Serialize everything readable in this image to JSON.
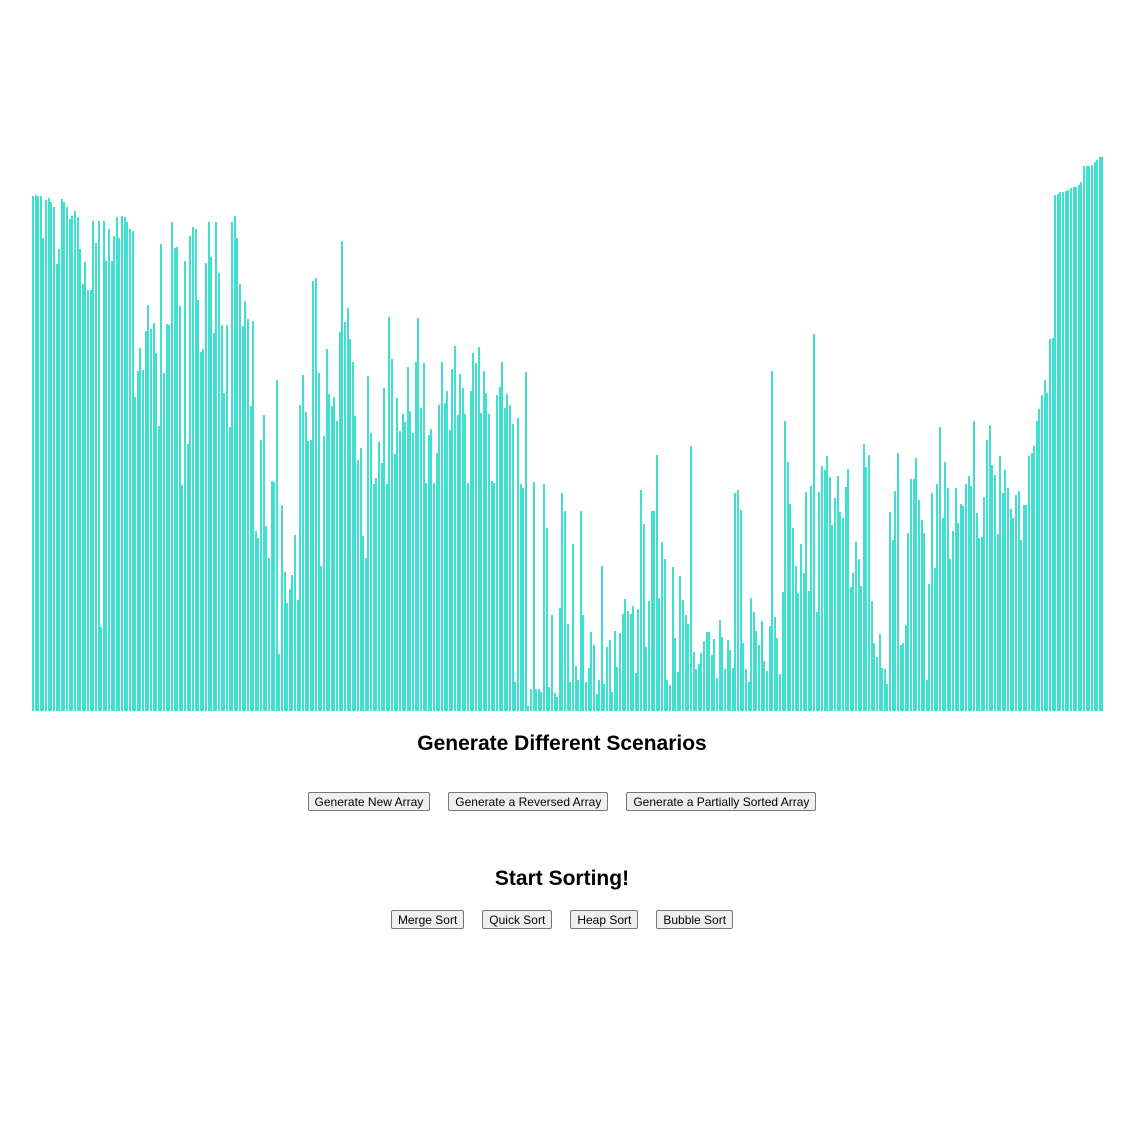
{
  "chart_data": {
    "type": "bar",
    "bar_color": "#40e0d0",
    "ylim": [
      0,
      700
    ],
    "values": [
      584,
      585,
      584,
      584,
      536,
      580,
      582,
      577,
      572,
      506,
      524,
      581,
      578,
      572,
      558,
      561,
      567,
      560,
      524,
      484,
      509,
      477,
      477,
      556,
      530,
      556,
      90,
      556,
      510,
      547,
      510,
      539,
      560,
      536,
      561,
      560,
      554,
      546,
      544,
      354,
      384,
      410,
      385,
      430,
      459,
      432,
      439,
      404,
      321,
      529,
      381,
      438,
      437,
      554,
      525,
      526,
      458,
      253,
      510,
      300,
      538,
      549,
      546,
      465,
      406,
      409,
      508,
      554,
      514,
      427,
      554,
      496,
      436,
      359,
      436,
      320,
      554,
      561,
      536,
      484,
      435,
      464,
      444,
      344,
      441,
      200,
      192,
      305,
      334,
      206,
      170,
      258,
      257,
      373,
      60,
      230,
      154,
      118,
      134,
      150,
      196,
      122,
      345,
      379,
      337,
      304,
      305,
      487,
      490,
      381,
      161,
      309,
      409,
      358,
      344,
      354,
      327,
      428,
      533,
      440,
      456,
      421,
      394,
      332,
      282,
      296,
      195,
      170,
      378,
      313,
      254,
      261,
      302,
      279,
      364,
      254,
      446,
      398,
      289,
      353,
      315,
      335,
      325,
      388,
      338,
      313,
      394,
      445,
      342,
      393,
      255,
      311,
      317,
      256,
      290,
      345,
      394,
      347,
      361,
      316,
      386,
      412,
      333,
      380,
      364,
      335,
      255,
      361,
      404,
      393,
      411,
      336,
      384,
      359,
      335,
      258,
      255,
      356,
      365,
      394,
      342,
      357,
      345,
      323,
      28,
      330,
      254,
      250,
      383,
      0,
      20,
      257,
      20,
      20,
      16,
      254,
      204,
      22,
      104,
      15,
      10,
      112,
      244,
      224,
      94,
      27,
      186,
      46,
      30,
      224,
      104,
      28,
      44,
      85,
      70,
      14,
      30,
      160,
      25,
      68,
      76,
      16,
      86,
      45,
      84,
      105,
      123,
      109,
      106,
      115,
      38,
      111,
      248,
      209,
      68,
      120,
      224,
      224,
      288,
      124,
      188,
      169,
      30,
      24,
      159,
      78,
      39,
      149,
      122,
      104,
      94,
      298,
      62,
      43,
      48,
      61,
      75,
      85,
      85,
      58,
      77,
      32,
      99,
      79,
      43,
      76,
      64,
      44,
      244,
      248,
      225,
      72,
      42,
      28,
      124,
      108,
      86,
      70,
      98,
      52,
      40,
      92,
      384,
      102,
      78,
      37,
      131,
      326,
      280,
      232,
      204,
      160,
      130,
      186,
      152,
      245,
      132,
      252,
      426,
      108,
      245,
      275,
      270,
      286,
      262,
      207,
      238,
      264,
      222,
      216,
      251,
      272,
      136,
      152,
      188,
      168,
      137,
      300,
      274,
      288,
      120,
      72,
      56,
      82,
      44,
      42,
      25,
      222,
      190,
      246,
      290,
      70,
      72,
      93,
      198,
      260,
      260,
      284,
      236,
      213,
      198,
      30,
      140,
      244,
      158,
      254,
      320,
      216,
      280,
      250,
      168,
      200,
      250,
      210,
      232,
      229,
      254,
      264,
      252,
      326,
      221,
      192,
      194,
      240,
      305,
      322,
      276,
      265,
      197,
      286,
      244,
      270,
      250,
      226,
      216,
      242,
      246,
      190,
      230,
      230,
      287,
      290,
      298,
      326,
      340,
      356,
      374,
      359,
      421,
      422,
      585,
      587,
      589,
      589,
      590,
      591,
      593,
      595,
      595,
      597,
      600,
      619,
      619,
      619,
      620,
      623,
      626,
      629,
      629
    ]
  },
  "headings": {
    "scenarios": "Generate Different Scenarios",
    "sorting": "Start Sorting!"
  },
  "scenario_buttons": {
    "new": "Generate New Array",
    "reversed": "Generate a Reversed Array",
    "partial": "Generate a Partially Sorted Array"
  },
  "sort_buttons": {
    "merge": "Merge Sort",
    "quick": "Quick Sort",
    "heap": "Heap Sort",
    "bubble": "Bubble Sort"
  }
}
